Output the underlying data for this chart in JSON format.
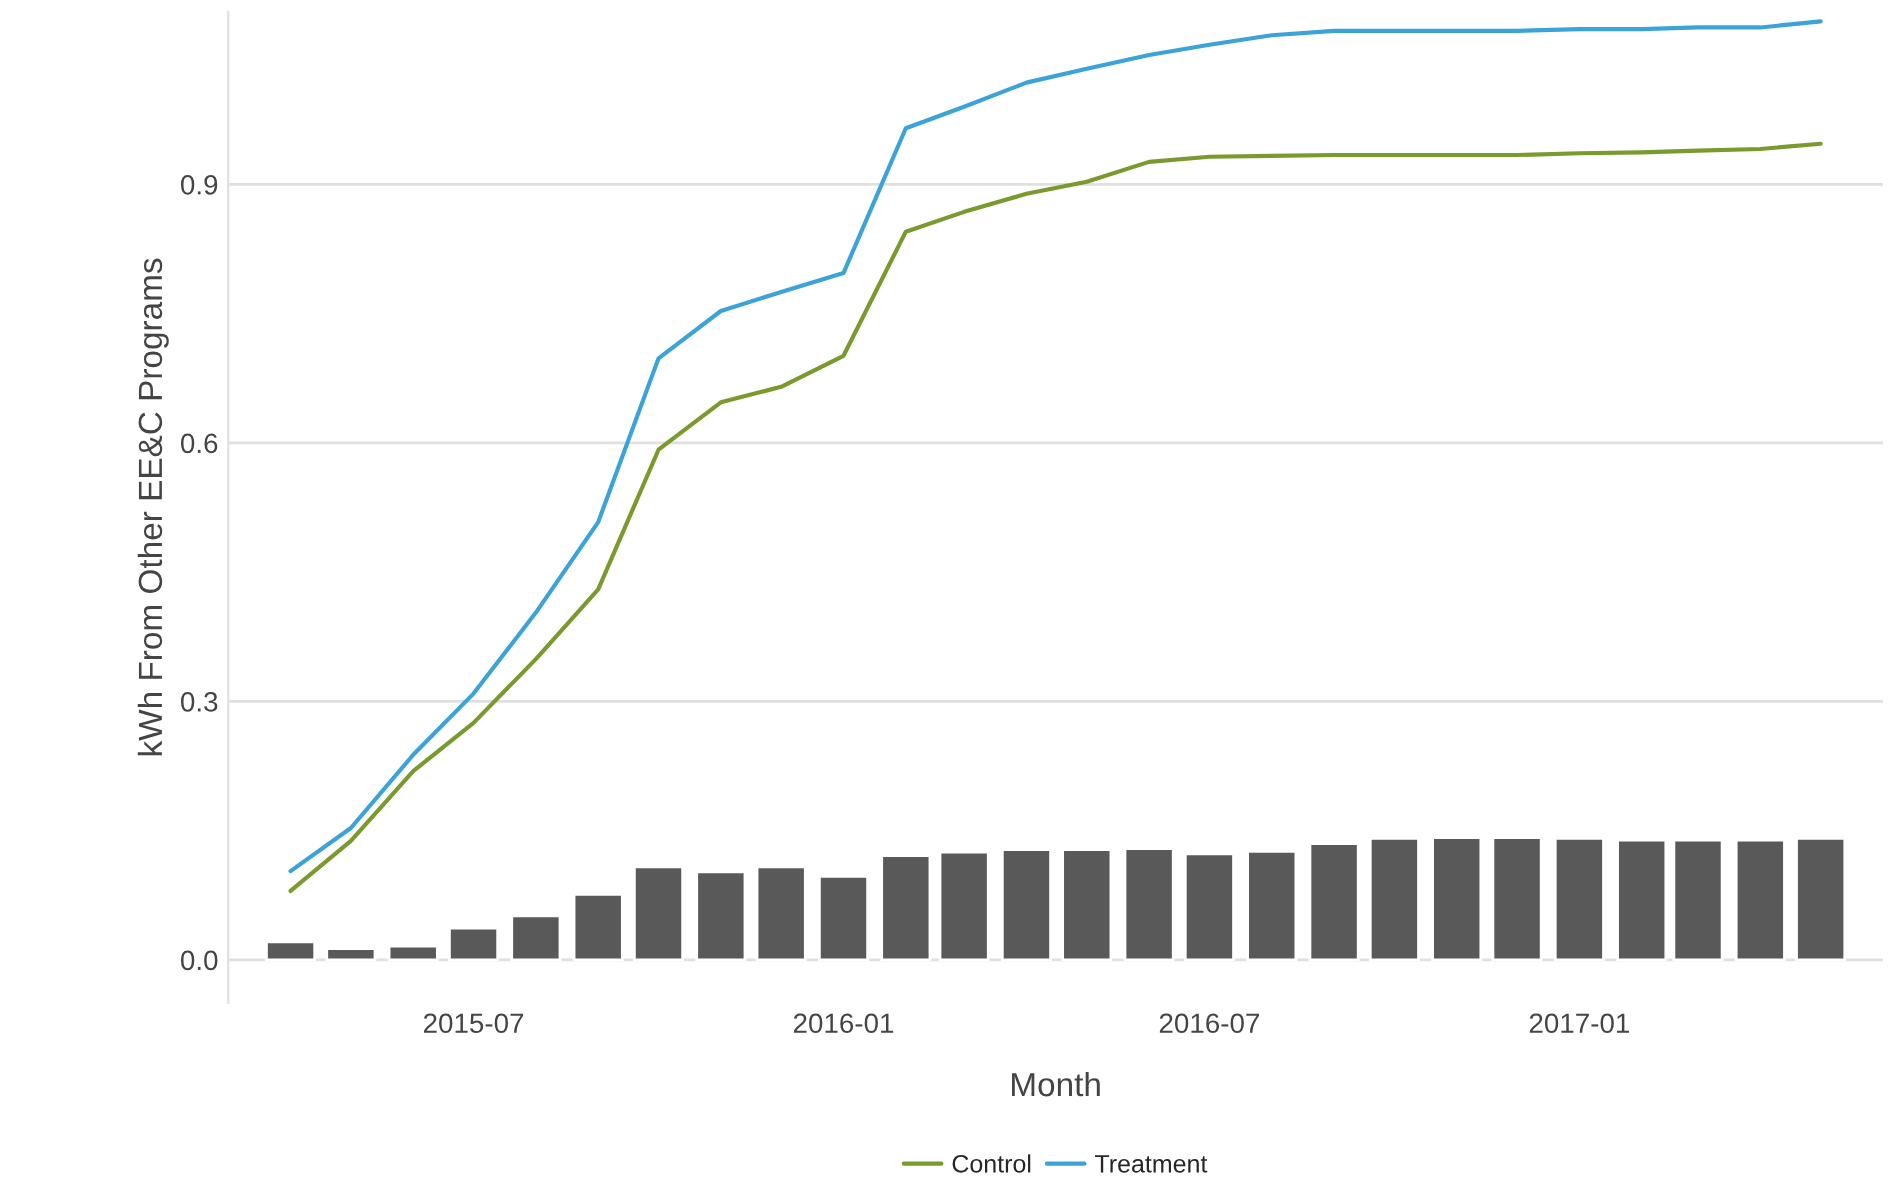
{
  "chart_data": {
    "type": "line",
    "xlabel": "Month",
    "ylabel": "kWh From Other EE&C Programs",
    "x": [
      "2015-04",
      "2015-05",
      "2015-06",
      "2015-07",
      "2015-08",
      "2015-09",
      "2015-10",
      "2015-11",
      "2015-12",
      "2016-01",
      "2016-02",
      "2016-03",
      "2016-04",
      "2016-05",
      "2016-06",
      "2016-07",
      "2016-08",
      "2016-09",
      "2016-10",
      "2016-11",
      "2016-12",
      "2017-01",
      "2017-02",
      "2017-03",
      "2017-04",
      "2017-05"
    ],
    "series": [
      {
        "type": "bar",
        "color": "#595959",
        "values": [
          0.021,
          0.013,
          0.016,
          0.037,
          0.051,
          0.076,
          0.108,
          0.102,
          0.108,
          0.097,
          0.121,
          0.125,
          0.128,
          0.128,
          0.129,
          0.123,
          0.126,
          0.135,
          0.141,
          0.142,
          0.142,
          0.141,
          0.139,
          0.139,
          0.139,
          0.141
        ]
      },
      {
        "name": "Control",
        "color": "#7a9a2e",
        "values": [
          0.08,
          0.138,
          0.219,
          0.275,
          0.349,
          0.43,
          0.592,
          0.647,
          0.665,
          0.701,
          0.845,
          0.868,
          0.889,
          0.903,
          0.926,
          0.932,
          0.933,
          0.934,
          0.934,
          0.934,
          0.934,
          0.936,
          0.937,
          0.939,
          0.941,
          0.947
        ]
      },
      {
        "name": "Treatment",
        "color": "#3ba3d8",
        "values": [
          0.103,
          0.153,
          0.238,
          0.309,
          0.403,
          0.508,
          0.698,
          0.753,
          0.775,
          0.797,
          0.965,
          0.99,
          1.018,
          1.034,
          1.05,
          1.062,
          1.073,
          1.078,
          1.078,
          1.078,
          1.078,
          1.08,
          1.08,
          1.082,
          1.082,
          1.089
        ]
      }
    ],
    "xlim": [
      "2015-03",
      "2017-06"
    ],
    "xticks": [
      "2015-07",
      "2016-01",
      "2016-07",
      "2017-01"
    ],
    "ylim": [
      -0.05,
      1.1
    ],
    "yticks": [
      {
        "value": 0,
        "label": "0.0"
      },
      0.3,
      0.6,
      0.9
    ],
    "grid": "y",
    "legend": "bottom",
    "line_style": "solid"
  }
}
